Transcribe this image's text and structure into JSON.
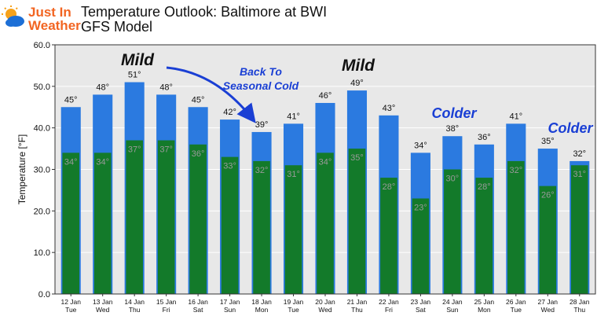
{
  "header": {
    "logo_line1": "Just In",
    "logo_line2": "Weather",
    "title": "Temperature Outlook: Baltimore at BWI",
    "subtitle": "GFS Model"
  },
  "chart_data": {
    "type": "bar",
    "ylabel": "Temperature [°F]",
    "ylim": [
      0,
      60
    ],
    "yticks": [
      "0.0",
      "10.0",
      "20.0",
      "30.0",
      "40.0",
      "50.0",
      "60.0"
    ],
    "grid": true,
    "categories": [
      [
        "12 Jan",
        "Tue"
      ],
      [
        "13 Jan",
        "Wed"
      ],
      [
        "14 Jan",
        "Thu"
      ],
      [
        "15 Jan",
        "Fri"
      ],
      [
        "16 Jan",
        "Sat"
      ],
      [
        "17 Jan",
        "Sun"
      ],
      [
        "18 Jan",
        "Mon"
      ],
      [
        "19 Jan",
        "Tue"
      ],
      [
        "20 Jan",
        "Wed"
      ],
      [
        "21 Jan",
        "Thu"
      ],
      [
        "22 Jan",
        "Fri"
      ],
      [
        "23 Jan",
        "Sat"
      ],
      [
        "24 Jan",
        "Sun"
      ],
      [
        "25 Jan",
        "Mon"
      ],
      [
        "26 Jan",
        "Tue"
      ],
      [
        "27 Jan",
        "Wed"
      ],
      [
        "28 Jan",
        "Thu"
      ]
    ],
    "series": [
      {
        "color": "#2b7ae0",
        "values": [
          45,
          48,
          51,
          48,
          45,
          42,
          39,
          41,
          46,
          49,
          43,
          34,
          38,
          36,
          41,
          35,
          32
        ]
      },
      {
        "color": "#137a2a",
        "values": [
          34,
          34,
          37,
          37,
          36,
          33,
          32,
          31,
          34,
          35,
          28,
          23,
          30,
          28,
          32,
          26,
          31
        ]
      }
    ],
    "annotations": [
      {
        "text": "Mild",
        "color": "#111111"
      },
      {
        "text": "Back To",
        "color": "#1a3fd4"
      },
      {
        "text": "Seasonal Cold",
        "color": "#1a3fd4"
      },
      {
        "text": "Mild",
        "color": "#111111"
      },
      {
        "text": "Colder",
        "color": "#1a3fd4"
      },
      {
        "text": "Colder",
        "color": "#1a3fd4"
      }
    ],
    "arrow_color": "#1a3fd4"
  }
}
